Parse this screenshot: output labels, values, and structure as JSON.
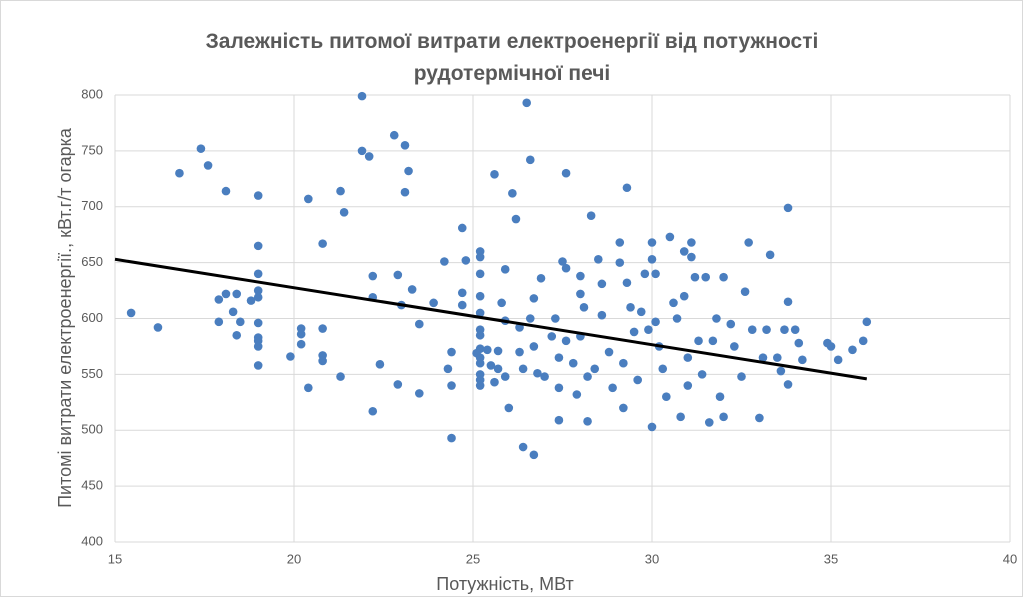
{
  "chart_data": {
    "type": "scatter",
    "title": "Залежність питомої витрати електроенергії від потужності рудотермічної печі",
    "xlabel": "Потужність, МВт",
    "ylabel": "Питомі витрати електроенергії., кВт.г/т огарка",
    "xlim": [
      15,
      40
    ],
    "xticks": [
      15,
      20,
      25,
      30,
      35,
      40
    ],
    "ylim": [
      400,
      800
    ],
    "yticks": [
      400,
      450,
      500,
      550,
      600,
      650,
      700,
      750,
      800
    ],
    "grid": true,
    "series": [
      {
        "color": "#4a7ebf",
        "x": [
          15.45,
          16.2,
          16.8,
          17.4,
          17.6,
          18.1,
          17.9,
          17.9,
          18.1,
          18.4,
          18.3,
          18.5,
          18.4,
          18.8,
          19,
          19,
          19,
          19,
          19,
          19,
          19,
          19,
          19,
          19,
          19.9,
          20.2,
          20.2,
          20.2,
          20.4,
          20.4,
          20.8,
          20.8,
          20.8,
          20.8,
          21.3,
          21.4,
          21.3,
          21.9,
          21.9,
          22.1,
          22.2,
          22.2,
          22.2,
          22.4,
          22.8,
          23.1,
          23.1,
          23.2,
          22.9,
          23,
          22.9,
          23.3,
          23.5,
          23.5,
          23.9,
          24.2,
          24.3,
          24.4,
          24.4,
          24.4,
          24.7,
          24.7,
          24.8,
          24.7,
          25.1,
          25.2,
          25.2,
          25.2,
          25.2,
          25.2,
          25.2,
          25.2,
          25.2,
          25.2,
          25.2,
          25.2,
          25.2,
          25.2,
          25.4,
          25.5,
          25.6,
          25.7,
          25.7,
          25.8,
          25.9,
          25.9,
          25.9,
          26.0,
          26.1,
          26.2,
          26.3,
          26.3,
          26.4,
          26.4,
          26.5,
          26.6,
          26.6,
          26.7,
          26.7,
          26.7,
          26.8,
          25.6,
          26.9,
          27.0,
          27.2,
          27.3,
          27.4,
          27.4,
          27.4,
          27.5,
          27.6,
          27.6,
          27.6,
          27.8,
          27.9,
          28.0,
          28.0,
          28.0,
          28.1,
          28.2,
          28.2,
          28.3,
          28.4,
          28.5,
          28.6,
          28.6,
          28.8,
          28.9,
          29.1,
          29.1,
          29.2,
          29.2,
          29.3,
          29.3,
          29.4,
          29.5,
          29.6,
          29.7,
          29.8,
          29.9,
          30.0,
          30.0,
          30.0,
          30.1,
          30.1,
          30.2,
          30.3,
          30.4,
          30.5,
          30.6,
          30.7,
          30.8,
          30.9,
          30.9,
          31.0,
          31.0,
          31.1,
          31.1,
          31.2,
          31.3,
          31.4,
          31.5,
          31.6,
          31.7,
          31.8,
          31.9,
          32.0,
          32.0,
          32.2,
          32.3,
          32.5,
          32.6,
          32.7,
          32.8,
          33.0,
          33.1,
          33.2,
          33.3,
          33.5,
          33.6,
          33.7,
          33.8,
          33.8,
          33.8,
          34.0,
          34.1,
          34.2,
          34.9,
          35.0,
          35.2,
          35.6,
          35.9,
          36.0
        ],
        "values": [
          605,
          592,
          730,
          752,
          737,
          714,
          597,
          617,
          622,
          622,
          606,
          597,
          585,
          616,
          710,
          665,
          640,
          625,
          619,
          596,
          583,
          575,
          558,
          580,
          566,
          591,
          586,
          577,
          707,
          538,
          667,
          567,
          591,
          562,
          714,
          695,
          548,
          799,
          750,
          745,
          638,
          619,
          517,
          559,
          764,
          755,
          713,
          732,
          639,
          612,
          541,
          626,
          595,
          533,
          614,
          651,
          555,
          540,
          570,
          493,
          681,
          623,
          652,
          612,
          569,
          660,
          655,
          640,
          620,
          605,
          590,
          585,
          573,
          565,
          560,
          550,
          545,
          540,
          572,
          558,
          543,
          571,
          555,
          614,
          644,
          598,
          548,
          520,
          712,
          689,
          592,
          570,
          555,
          485,
          793,
          742,
          600,
          618,
          575,
          478,
          551,
          729,
          636,
          548,
          584,
          600,
          565,
          538,
          509,
          651,
          730,
          645,
          580,
          560,
          532,
          638,
          622,
          584,
          610,
          548,
          508,
          692,
          555,
          653,
          631,
          603,
          570,
          538,
          668,
          650,
          520,
          560,
          717,
          632,
          610,
          588,
          545,
          606,
          640,
          590,
          668,
          653,
          503,
          640,
          597,
          575,
          555,
          530,
          673,
          614,
          600,
          512,
          660,
          620,
          565,
          540,
          668,
          655,
          637,
          580,
          550,
          637,
          507,
          580,
          600,
          530,
          637,
          512,
          595,
          575,
          548,
          624,
          668,
          590,
          511,
          565,
          590,
          657,
          565,
          553,
          590,
          699,
          615,
          541,
          590,
          578,
          563,
          578,
          575,
          563,
          572,
          580,
          597
        ]
      }
    ],
    "trendline": {
      "color": "#000000",
      "x": [
        15,
        36
      ],
      "values": [
        653,
        546
      ]
    }
  }
}
